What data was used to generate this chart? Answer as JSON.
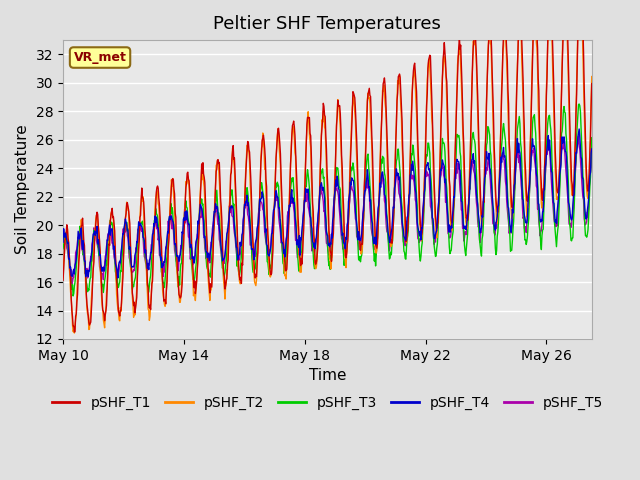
{
  "title": "Peltier SHF Temperatures",
  "xlabel": "Time",
  "ylabel": "Soil Temperature",
  "xlim": [
    0,
    17.5
  ],
  "ylim": [
    12,
    33
  ],
  "yticks": [
    12,
    14,
    16,
    18,
    20,
    22,
    24,
    26,
    28,
    30,
    32
  ],
  "xtick_positions": [
    0,
    4,
    8,
    12,
    16
  ],
  "xtick_labels": [
    "May 10",
    "May 14",
    "May 18",
    "May 22",
    "May 26"
  ],
  "legend_labels": [
    "pSHF_T1",
    "pSHF_T2",
    "pSHF_T3",
    "pSHF_T4",
    "pSHF_T5"
  ],
  "line_colors": [
    "#cc0000",
    "#ff8800",
    "#00cc00",
    "#0000cc",
    "#aa00aa"
  ],
  "background_color": "#e0e0e0",
  "plot_bg_color": "#e8e8e8",
  "annotation_text": "VR_met",
  "title_fontsize": 13,
  "axis_label_fontsize": 11,
  "tick_fontsize": 10,
  "legend_fontsize": 10
}
